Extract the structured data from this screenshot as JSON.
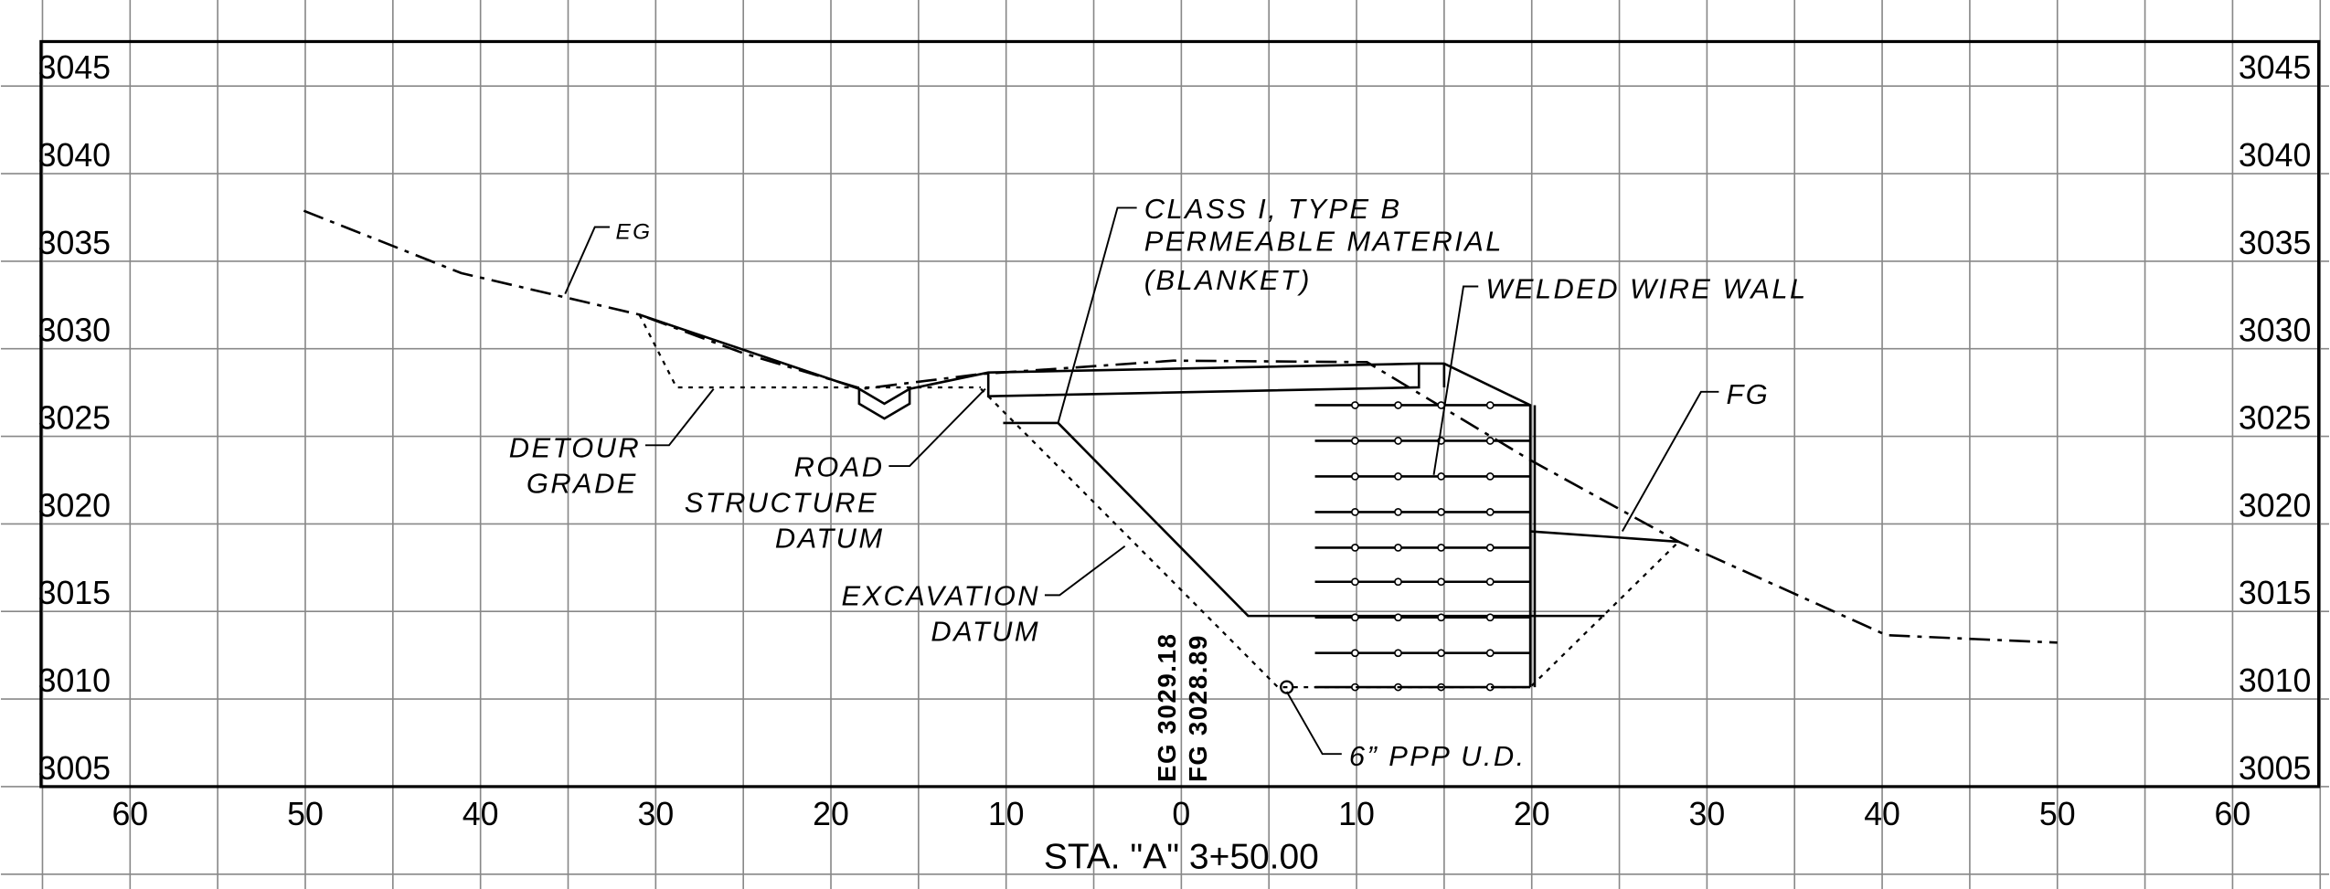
{
  "left_elevations": [
    3045,
    3040,
    3035,
    3030,
    3025,
    3020,
    3015,
    3010,
    3005
  ],
  "right_elevations": [
    3045,
    3040,
    3035,
    3030,
    3025,
    3020,
    3015,
    3010,
    3005
  ],
  "offsets": [
    {
      "value": -60,
      "label": "60"
    },
    {
      "value": -50,
      "label": "50"
    },
    {
      "value": -40,
      "label": "40"
    },
    {
      "value": -30,
      "label": "30"
    },
    {
      "value": -20,
      "label": "20"
    },
    {
      "value": -10,
      "label": "10"
    },
    0,
    10,
    20,
    30,
    40,
    50,
    60
  ],
  "station_label": "STA. \"A\" 3+50.00",
  "annotations": {
    "eg": "EG",
    "class_line1": "CLASS I, TYPE B",
    "class_line2": "PERMEABLE MATERIAL",
    "class_line3": "(BLANKET)",
    "welded_wire_wall": "WELDED WIRE WALL",
    "fg": "FG",
    "detour_line1": "DETOUR",
    "detour_line2": "GRADE",
    "road_line1": "ROAD",
    "road_line2": "STRUCTURE",
    "road_line3": "DATUM",
    "excavation_line1": "EXCAVATION",
    "excavation_line2": "DATUM",
    "pipe": "6” PPP U.D.",
    "eg_elevation": "EG 3029.18",
    "fg_elevation": "FG 3028.89"
  }
}
